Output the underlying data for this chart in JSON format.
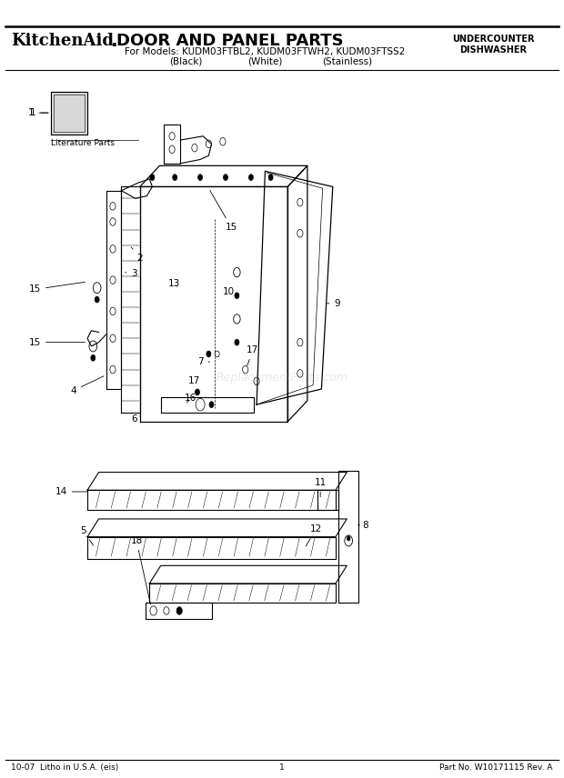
{
  "title_brand": "KitchenAid",
  "title_dot": ".",
  "title_main": " DOOR AND PANEL PARTS",
  "subtitle1": "For Models: KUDM03FTBL2, KUDM03FTWH2, KUDM03FTSS2",
  "subtitle2_black": "(Black)",
  "subtitle2_white": "(White)",
  "subtitle2_stainless": "(Stainless)",
  "top_right1": "UNDERCOUNTER",
  "top_right2": "DISHWASHER",
  "footer_left": "10-07  Litho in U.S.A. (eis)",
  "footer_center": "1",
  "footer_right": "Part No. W10171115 Rev. A",
  "watermark": "ReplacementParts.com",
  "lit_label": "Literature Parts",
  "bg_color": "#ffffff",
  "line_color": "#000000"
}
